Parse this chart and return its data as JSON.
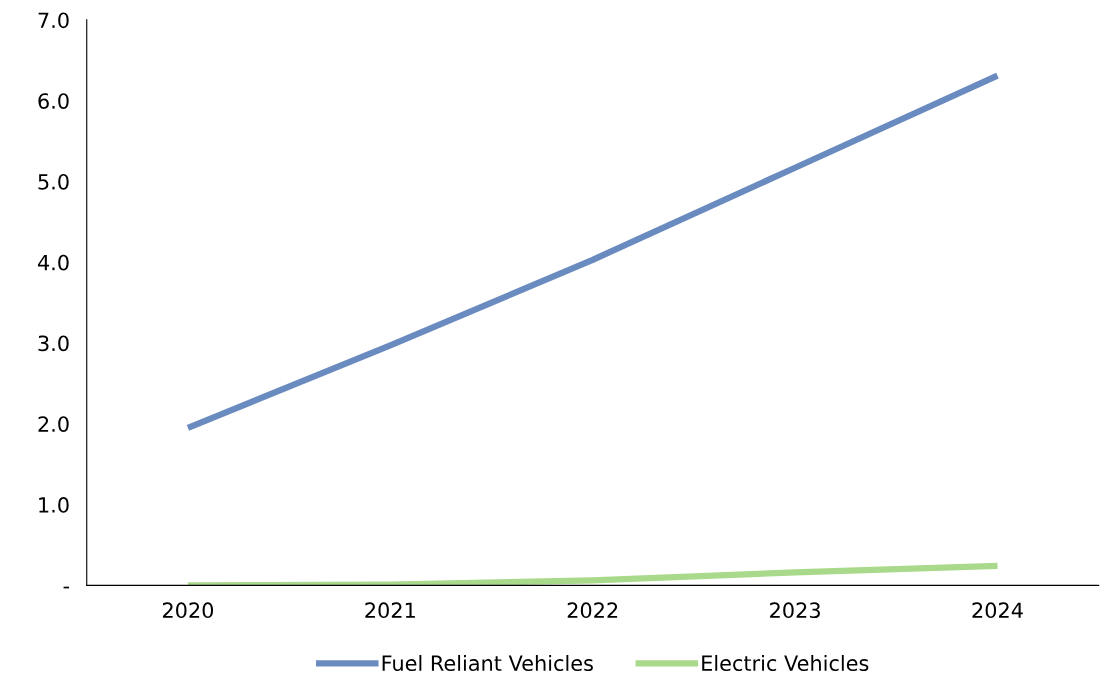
{
  "chart_data": {
    "type": "line",
    "categories": [
      "2020",
      "2021",
      "2022",
      "2023",
      "2024"
    ],
    "series": [
      {
        "name": "Fuel Reliant Vehicles",
        "color": "#6a8bbf",
        "values": [
          1.95,
          2.97,
          4.03,
          5.17,
          6.31
        ]
      },
      {
        "name": "Electric Vehicles",
        "color": "#a9d98b",
        "values": [
          0.0,
          0.01,
          0.06,
          0.16,
          0.24
        ]
      }
    ],
    "ylim": [
      0,
      7
    ],
    "yticks": [
      {
        "value": 0,
        "label": "-"
      },
      {
        "value": 1,
        "label": "1.0"
      },
      {
        "value": 2,
        "label": "2.0"
      },
      {
        "value": 3,
        "label": "3.0"
      },
      {
        "value": 4,
        "label": "4.0"
      },
      {
        "value": 5,
        "label": "5.0"
      },
      {
        "value": 6,
        "label": "6.0"
      },
      {
        "value": 7,
        "label": "7.0"
      }
    ],
    "grid": false,
    "legend": "bottom",
    "marker": "none",
    "line_style": "solid"
  }
}
